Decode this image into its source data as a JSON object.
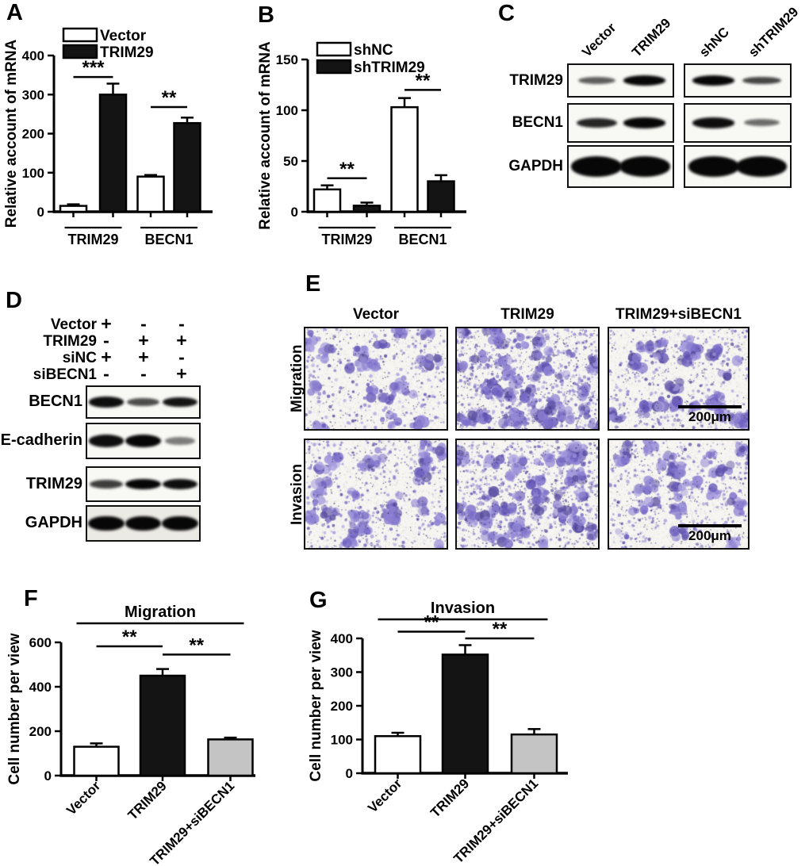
{
  "panels": {
    "a": {
      "label": "A"
    },
    "b": {
      "label": "B"
    },
    "c": {
      "label": "C",
      "proteins": [
        "TRIM29",
        "BECN1",
        "GAPDH"
      ],
      "groups": [
        {
          "lanes": [
            "Vector",
            "TRIM29"
          ],
          "bands": [
            [
              0.45,
              1.0
            ],
            [
              0.8,
              1.0
            ],
            [
              1.0,
              1.0
            ]
          ]
        },
        {
          "lanes": [
            "shNC",
            "shTRIM29"
          ],
          "bands": [
            [
              1.0,
              0.6
            ],
            [
              0.95,
              0.35
            ],
            [
              1.0,
              1.0
            ]
          ]
        }
      ]
    },
    "d": {
      "label": "D",
      "conditions": [
        {
          "name": "Vector",
          "signs": [
            "+",
            "-",
            "-"
          ]
        },
        {
          "name": "TRIM29",
          "signs": [
            "-",
            "+",
            "+"
          ]
        },
        {
          "name": "siNC",
          "signs": [
            "+",
            "+",
            "-"
          ]
        },
        {
          "name": "siBECN1",
          "signs": [
            "-",
            "-",
            "+"
          ]
        }
      ],
      "proteins": [
        "BECN1",
        "E-cadherin",
        "TRIM29",
        "GAPDH"
      ],
      "bands": [
        [
          0.95,
          0.55,
          0.9
        ],
        [
          0.95,
          1.0,
          0.25
        ],
        [
          0.65,
          1.0,
          0.95
        ],
        [
          1.0,
          1.0,
          1.0
        ]
      ]
    },
    "e": {
      "label": "E",
      "column_labels": [
        "Vector",
        "TRIM29",
        "TRIM29+siBECN1"
      ],
      "row_labels": [
        "Migration",
        "Invasion"
      ],
      "scale_bar_label": "200μm",
      "densities": [
        [
          0.5,
          1.0,
          0.55
        ],
        [
          0.6,
          0.95,
          0.6
        ]
      ],
      "stain_colors": [
        "#9186d6",
        "#7a6cc9",
        "#6557b8",
        "#564a9e",
        "#8d80d2",
        "#a79dde"
      ]
    },
    "f": {
      "label": "F"
    },
    "g": {
      "label": "G"
    }
  },
  "chart_data": [
    {
      "id": "A",
      "type": "bar",
      "ylabel": "Relative account of mRNA",
      "ylim": [
        0,
        400
      ],
      "yticks": [
        0,
        100,
        200,
        300,
        400
      ],
      "categories": [
        "TRIM29",
        "BECN1"
      ],
      "series": [
        {
          "name": "Vector",
          "color": "#ffffff",
          "values": [
            15,
            90
          ],
          "errors": [
            4,
            4
          ]
        },
        {
          "name": "TRIM29",
          "color": "#141414",
          "values": [
            300,
            227
          ],
          "errors": [
            28,
            14
          ]
        }
      ],
      "legend_position": "top-left",
      "significance": [
        {
          "group": 0,
          "label": "***",
          "y": 345
        },
        {
          "group": 1,
          "label": "**",
          "y": 268
        }
      ]
    },
    {
      "id": "B",
      "type": "bar",
      "ylabel": "Relative account of mRNA",
      "ylim": [
        0,
        150
      ],
      "yticks": [
        0,
        50,
        100,
        150
      ],
      "categories": [
        "TRIM29",
        "BECN1"
      ],
      "series": [
        {
          "name": "shNC",
          "color": "#ffffff",
          "values": [
            22,
            103
          ],
          "errors": [
            4,
            9
          ]
        },
        {
          "name": "shTRIM29",
          "color": "#141414",
          "values": [
            6,
            30
          ],
          "errors": [
            3,
            6
          ]
        }
      ],
      "legend_position": "top-left",
      "significance": [
        {
          "group": 0,
          "label": "**",
          "y": 33
        },
        {
          "group": 1,
          "label": "**",
          "y": 120
        }
      ]
    },
    {
      "id": "F",
      "type": "bar",
      "title": "Migration",
      "ylabel": "Cell number per view",
      "ylim": [
        0,
        600
      ],
      "yticks": [
        0,
        200,
        400,
        600
      ],
      "categories": [
        "Vector",
        "TRIM29",
        "TRIM29+siBECN1"
      ],
      "values": [
        130,
        450,
        163
      ],
      "errors": [
        15,
        30,
        8
      ],
      "colors": [
        "#ffffff",
        "#141414",
        "#c4c4c4"
      ],
      "significance": [
        {
          "x1": 0,
          "x2": 1,
          "label": "**",
          "y": 582
        },
        {
          "x1": 1,
          "x2": 2,
          "label": "**",
          "y": 545
        }
      ],
      "bracket": true
    },
    {
      "id": "G",
      "type": "bar",
      "title": "Invasion",
      "ylabel": "Cell number per view",
      "ylim": [
        0,
        400
      ],
      "yticks": [
        0,
        100,
        200,
        300,
        400
      ],
      "categories": [
        "Vector",
        "TRIM29",
        "TRIM29+siBECN1"
      ],
      "values": [
        110,
        352,
        115
      ],
      "errors": [
        10,
        28,
        16
      ],
      "colors": [
        "#ffffff",
        "#141414",
        "#c4c4c4"
      ],
      "significance": [
        {
          "x1": 0,
          "x2": 1,
          "label": "**",
          "y": 420
        },
        {
          "x1": 1,
          "x2": 2,
          "label": "**",
          "y": 400
        }
      ],
      "bracket": true
    }
  ]
}
